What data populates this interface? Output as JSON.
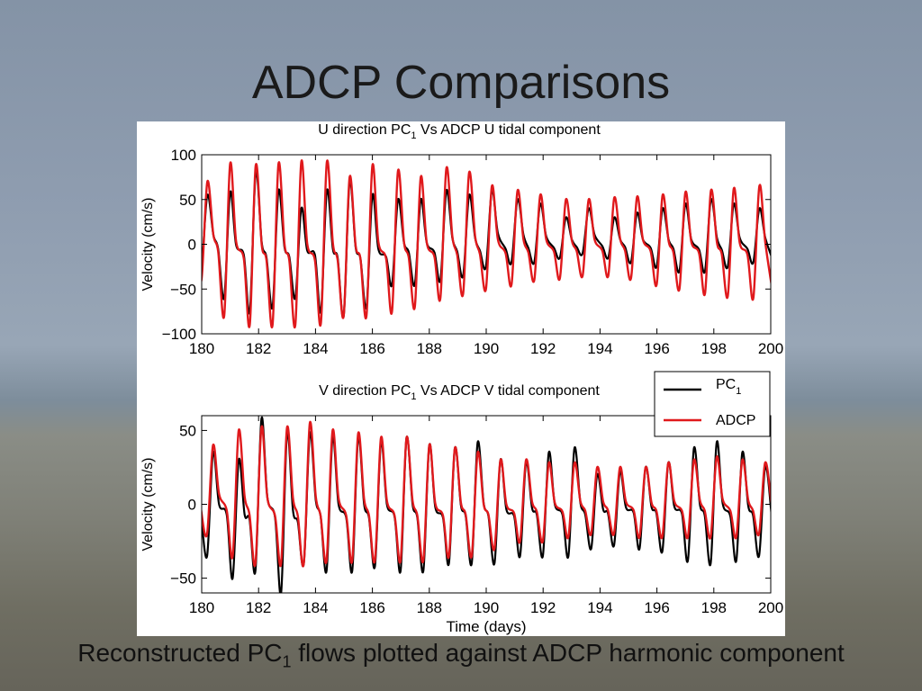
{
  "slide": {
    "title": "ADCP Comparisons",
    "caption_pre": "Reconstructed PC",
    "caption_sub": "1",
    "caption_post": " flows plotted against ADCP harmonic component"
  },
  "chart_data": [
    {
      "type": "line",
      "title": "U direction PC1 Vs ADCP U tidal component",
      "title_parts": [
        "U direction PC",
        "1",
        " Vs ADCP U tidal component"
      ],
      "xlabel": "",
      "ylabel": "Velocity (cm/s)",
      "xlim": [
        180,
        200
      ],
      "ylim": [
        -100,
        100
      ],
      "xticks": [
        180,
        182,
        184,
        186,
        188,
        190,
        192,
        194,
        196,
        198,
        200
      ],
      "yticks": [
        -100,
        -50,
        0,
        50,
        100
      ],
      "ytick_labels": [
        "−100",
        "−50",
        "0",
        "50",
        "100"
      ],
      "grid": false,
      "series": [
        {
          "name": "PC1",
          "color": "#000000",
          "peaks_x": [
            180.2,
            181.0,
            181.9,
            182.7,
            183.5,
            184.4,
            185.2,
            186.0,
            186.9,
            187.7,
            188.6,
            189.4,
            190.2,
            191.1,
            191.9,
            192.8,
            193.6,
            194.5,
            195.3,
            196.2,
            197.0,
            197.9,
            198.7,
            199.6
          ],
          "peaks_y": [
            55,
            58,
            80,
            60,
            40,
            60,
            70,
            55,
            50,
            50,
            60,
            55,
            60,
            50,
            45,
            30,
            40,
            30,
            35,
            40,
            45,
            50,
            45,
            40
          ],
          "troughs_y": [
            -25,
            -60,
            -75,
            -70,
            -60,
            -75,
            -80,
            -70,
            -45,
            -45,
            -40,
            -35,
            -25,
            -20,
            -20,
            -15,
            -10,
            -15,
            -20,
            -25,
            -30,
            -30,
            -25,
            -20
          ]
        },
        {
          "name": "ADCP",
          "color": "#e0191c",
          "peaks_x": [
            180.2,
            181.0,
            181.9,
            182.7,
            183.5,
            184.4,
            185.2,
            186.0,
            186.9,
            187.7,
            188.6,
            189.4,
            190.2,
            191.1,
            191.9,
            192.8,
            193.6,
            194.5,
            195.3,
            196.2,
            197.0,
            197.9,
            198.7,
            199.6
          ],
          "peaks_y": [
            70,
            90,
            88,
            90,
            92,
            92,
            75,
            88,
            82,
            75,
            85,
            80,
            65,
            60,
            55,
            50,
            50,
            52,
            53,
            55,
            58,
            60,
            62,
            65
          ],
          "troughs_y": [
            -40,
            -80,
            -90,
            -90,
            -90,
            -88,
            -80,
            -80,
            -75,
            -70,
            -60,
            -55,
            -50,
            -45,
            -40,
            -38,
            -35,
            -35,
            -38,
            -45,
            -50,
            -55,
            -58,
            -60
          ]
        }
      ]
    },
    {
      "type": "line",
      "title": "V direction PC1 Vs ADCP V tidal component",
      "title_parts": [
        "V direction PC",
        "1",
        " Vs ADCP V tidal component"
      ],
      "xlabel": "Time (days)",
      "ylabel": "Velocity (cm/s)",
      "xlim": [
        180,
        200
      ],
      "ylim": [
        -60,
        60
      ],
      "xticks": [
        180,
        182,
        184,
        186,
        188,
        190,
        192,
        194,
        196,
        198,
        200
      ],
      "yticks": [
        -50,
        0,
        50
      ],
      "ytick_labels": [
        "−50",
        "0",
        "50"
      ],
      "grid": false,
      "legend": {
        "placement": "top-right",
        "entries": [
          {
            "label_main": "PC",
            "label_sub": "1",
            "color": "#000000"
          },
          {
            "label_main": "ADCP",
            "label_sub": "",
            "color": "#e0191c"
          }
        ]
      },
      "series": [
        {
          "name": "PC1",
          "color": "#000000",
          "peaks_x": [
            180.4,
            181.3,
            182.1,
            183.0,
            183.8,
            184.6,
            185.5,
            186.3,
            187.2,
            188.0,
            188.9,
            189.7,
            190.5,
            191.4,
            192.2,
            193.1,
            193.9,
            194.7,
            195.6,
            196.4,
            197.3,
            198.1,
            199.0,
            199.8
          ],
          "peaks_y": [
            35,
            30,
            58,
            48,
            48,
            45,
            45,
            42,
            45,
            40,
            38,
            42,
            30,
            28,
            35,
            38,
            20,
            22,
            25,
            28,
            38,
            42,
            35,
            25
          ],
          "troughs_y": [
            -35,
            -50,
            -45,
            -60,
            -40,
            -45,
            -45,
            -42,
            -45,
            -45,
            -40,
            -40,
            -40,
            -35,
            -35,
            -35,
            -30,
            -28,
            -30,
            -32,
            -38,
            -40,
            -38,
            -35
          ]
        },
        {
          "name": "ADCP",
          "color": "#e0191c",
          "peaks_x": [
            180.4,
            181.3,
            182.1,
            183.0,
            183.8,
            184.6,
            185.5,
            186.3,
            187.2,
            188.0,
            188.9,
            189.7,
            190.5,
            191.4,
            192.2,
            193.1,
            193.9,
            194.7,
            195.6,
            196.4,
            197.3,
            198.1,
            199.0,
            199.8
          ],
          "peaks_y": [
            40,
            50,
            52,
            52,
            55,
            50,
            48,
            45,
            45,
            40,
            38,
            35,
            30,
            30,
            28,
            28,
            25,
            25,
            25,
            28,
            30,
            32,
            30,
            28
          ],
          "troughs_y": [
            -20,
            -35,
            -40,
            -40,
            -40,
            -38,
            -38,
            -38,
            -38,
            -38,
            -35,
            -35,
            -30,
            -25,
            -25,
            -22,
            -20,
            -20,
            -22,
            -22,
            -22,
            -22,
            -22,
            -20
          ]
        }
      ]
    }
  ]
}
